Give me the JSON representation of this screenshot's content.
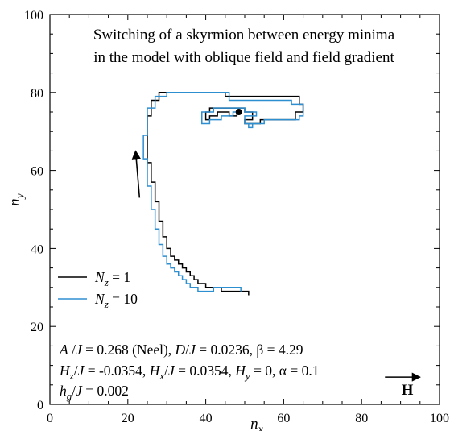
{
  "chart_data": {
    "type": "line",
    "title_lines": [
      "Switching of a skyrmion between energy minima",
      "in the model with oblique field and field gradient"
    ],
    "xlabel": {
      "base": "n",
      "sub": "x"
    },
    "ylabel": {
      "base": "n",
      "sub": "y"
    },
    "xlim": [
      0,
      100
    ],
    "ylim": [
      0,
      100
    ],
    "xticks": [
      "0",
      "20",
      "40",
      "60",
      "80",
      "100"
    ],
    "yticks": [
      "0",
      "20",
      "40",
      "60",
      "80",
      "100"
    ],
    "grid": false,
    "legend_position": "left",
    "series": [
      {
        "legend": {
          "var": "N",
          "sub": "z",
          "rest": " = 1"
        },
        "color": "#000000",
        "x": [
          51,
          51,
          44,
          44,
          40,
          40,
          38,
          38,
          37,
          37,
          36,
          36,
          35,
          35,
          34,
          34,
          33,
          33,
          32,
          32,
          31,
          31,
          30,
          30,
          29,
          29,
          28,
          28,
          27,
          27,
          26,
          26,
          25,
          25,
          26,
          26,
          28,
          28,
          45,
          45,
          64,
          64,
          65,
          65,
          63,
          63,
          54,
          54,
          50,
          50,
          52,
          52,
          50,
          50,
          46,
          46,
          41,
          41,
          40,
          40,
          41,
          41,
          43,
          43,
          46,
          46,
          48,
          48,
          49
        ],
        "y": [
          28,
          29,
          29,
          30,
          30,
          31,
          31,
          32,
          32,
          33,
          33,
          34,
          34,
          35,
          35,
          36,
          36,
          37,
          37,
          38,
          38,
          40,
          40,
          43,
          43,
          47,
          47,
          52,
          52,
          57,
          57,
          62,
          62,
          74,
          74,
          78,
          78,
          80,
          80,
          79,
          79,
          77,
          77,
          75,
          75,
          73,
          73,
          72,
          72,
          73,
          73,
          75,
          75,
          76,
          76,
          76,
          76,
          75,
          75,
          73,
          73,
          74,
          74,
          75,
          75,
          74,
          74,
          75,
          75
        ]
      },
      {
        "legend": {
          "var": "N",
          "sub": "z",
          "rest": " = 10"
        },
        "color": "#2e8fd0",
        "x": [
          49,
          49,
          42,
          42,
          38,
          38,
          36,
          36,
          35,
          35,
          34,
          34,
          33,
          33,
          32,
          32,
          31,
          31,
          30,
          30,
          29,
          29,
          28,
          28,
          27,
          27,
          26,
          26,
          25,
          25,
          24,
          24,
          25,
          25,
          27,
          27,
          30,
          30,
          46,
          46,
          62,
          62,
          65,
          65,
          64,
          64,
          55,
          55,
          51,
          51,
          52,
          52,
          50,
          50,
          53,
          53,
          50,
          50,
          47,
          47,
          42,
          42,
          39,
          39,
          41,
          41,
          44,
          44,
          47,
          47,
          48
        ],
        "y": [
          29,
          30,
          30,
          29,
          29,
          30,
          30,
          31,
          31,
          32,
          32,
          33,
          33,
          34,
          34,
          35,
          35,
          36,
          36,
          38,
          38,
          41,
          41,
          45,
          45,
          50,
          50,
          56,
          56,
          63,
          63,
          69,
          69,
          76,
          76,
          79,
          79,
          80,
          80,
          78,
          78,
          77,
          77,
          74,
          74,
          73,
          73,
          72,
          72,
          71,
          71,
          72,
          72,
          74,
          74,
          75,
          75,
          76,
          76,
          76,
          76,
          75,
          75,
          72,
          72,
          73,
          73,
          74,
          74,
          75,
          75
        ]
      }
    ],
    "marker": {
      "x": 48.5,
      "y": 75,
      "color": "#000000"
    },
    "annotations": {
      "param_lines": [
        [
          {
            "t": "A",
            "i": true
          },
          {
            "t": " /"
          },
          {
            "t": "J",
            "i": true
          },
          {
            "t": " = 0.268 (Neel), "
          },
          {
            "t": "D",
            "i": true
          },
          {
            "t": "/"
          },
          {
            "t": "J",
            "i": true
          },
          {
            "t": " = 0.0236,  β = 4.29"
          }
        ],
        [
          {
            "t": "H",
            "i": true
          },
          {
            "t": "z",
            "i": true,
            "sub": true
          },
          {
            "t": "/"
          },
          {
            "t": "J",
            "i": true
          },
          {
            "t": " = -0.0354, "
          },
          {
            "t": "H",
            "i": true
          },
          {
            "t": "x",
            "i": true,
            "sub": true
          },
          {
            "t": "/"
          },
          {
            "t": "J",
            "i": true
          },
          {
            "t": " = 0.0354, "
          },
          {
            "t": "H",
            "i": true
          },
          {
            "t": "y",
            "i": true,
            "sub": true
          },
          {
            "t": " = 0,  α = 0.1"
          }
        ],
        [
          {
            "t": "h",
            "i": true
          },
          {
            "t": "g",
            "i": true,
            "sub": true
          },
          {
            "t": "/"
          },
          {
            "t": "J",
            "i": true
          },
          {
            "t": " = 0.002"
          }
        ]
      ],
      "field_label": "H",
      "arrow_motion": {
        "from": [
          23,
          53
        ],
        "to": [
          22,
          65
        ]
      },
      "arrow_field": {
        "from": [
          86,
          7
        ],
        "to": [
          95,
          7
        ]
      }
    }
  }
}
